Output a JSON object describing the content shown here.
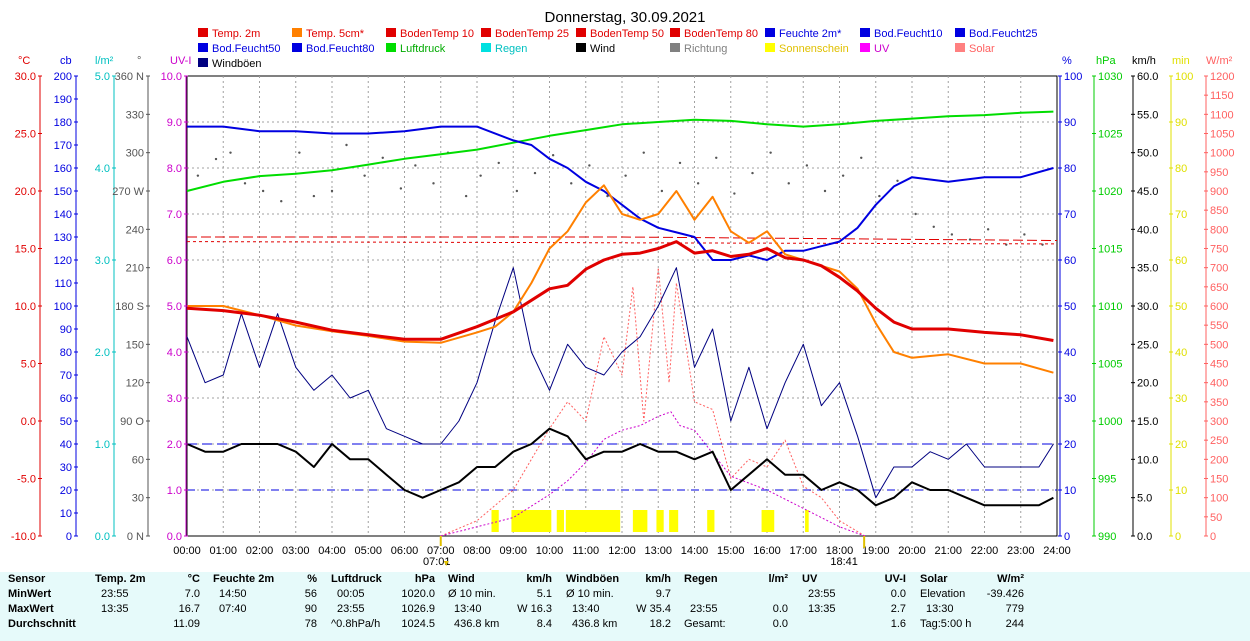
{
  "chart_data": {
    "type": "line",
    "title": "Donnerstag, 30.09.2021",
    "x_range": [
      0,
      24
    ],
    "x_ticks": [
      "00:00",
      "01:00",
      "02:00",
      "03:00",
      "04:00",
      "05:00",
      "06:00",
      "07:00",
      "08:00",
      "09:00",
      "10:00",
      "11:00",
      "12:00",
      "13:00",
      "14:00",
      "15:00",
      "16:00",
      "17:00",
      "18:00",
      "19:00",
      "20:00",
      "21:00",
      "22:00",
      "23:00",
      "24:00"
    ],
    "sunrise": "07:01",
    "sunset": "18:41",
    "legend": [
      {
        "label": "Temp. 2m",
        "color": "#e00000"
      },
      {
        "label": "Temp. 5cm*",
        "color": "#ff8000"
      },
      {
        "label": "BodenTemp 10",
        "color": "#e00000"
      },
      {
        "label": "BodenTemp 25",
        "color": "#e00000"
      },
      {
        "label": "BodenTemp 50",
        "color": "#e00000"
      },
      {
        "label": "BodenTemp 80",
        "color": "#e00000"
      },
      {
        "label": "Feuchte 2m*",
        "color": "#0000e0"
      },
      {
        "label": "Bod.Feucht10",
        "color": "#0000e0"
      },
      {
        "label": "Bod.Feucht25",
        "color": "#0000e0"
      },
      {
        "label": "Bod.Feucht50",
        "color": "#0000e0"
      },
      {
        "label": "Bod.Feucht80",
        "color": "#0000e0"
      },
      {
        "label": "Luftdruck",
        "color": "#00dd00"
      },
      {
        "label": "Regen",
        "color": "#00e0e0"
      },
      {
        "label": "Wind",
        "color": "#000000"
      },
      {
        "label": "Richtung",
        "color": "#808080"
      },
      {
        "label": "Sonnenschein",
        "color": "#ffff00"
      },
      {
        "label": "UV",
        "color": "#ff00ff"
      },
      {
        "label": "Solar",
        "color": "#ff8080"
      },
      {
        "label": "Windböen",
        "color": "#000080"
      }
    ],
    "axes": {
      "temp": {
        "unit": "°C",
        "color": "#e00000",
        "labels": [
          "30.0",
          "25.0",
          "20.0",
          "15.0",
          "10.0",
          "5.0",
          "0.0",
          "-5.0",
          "-10.0"
        ]
      },
      "cb": {
        "unit": "cb",
        "color": "#0000e0",
        "labels": [
          "200",
          "190",
          "180",
          "170",
          "160",
          "150",
          "140",
          "130",
          "120",
          "110",
          "100",
          "90",
          "80",
          "70",
          "60",
          "50",
          "40",
          "30",
          "20",
          "10",
          "0"
        ]
      },
      "rain": {
        "unit": "l/m²",
        "color": "#00c0c0",
        "labels": [
          "5.0",
          "4.0",
          "3.0",
          "2.0",
          "1.0",
          "0.0"
        ]
      },
      "dir": {
        "unit": "°",
        "color": "#555555",
        "labels": [
          "360 N",
          "330",
          "300",
          "270 W",
          "240",
          "210",
          "180 S",
          "150",
          "120",
          "90 O",
          "60",
          "30",
          "0 N"
        ]
      },
      "uv": {
        "unit": "UV-I",
        "color": "#cc00cc",
        "labels": [
          "10.0",
          "9.0",
          "8.0",
          "7.0",
          "6.0",
          "5.0",
          "4.0",
          "3.0",
          "2.0",
          "1.0",
          "0.0"
        ]
      },
      "hum": {
        "unit": "%",
        "color": "#0000e0",
        "labels": [
          "100",
          "90",
          "80",
          "70",
          "60",
          "50",
          "40",
          "30",
          "20",
          "10",
          "0"
        ]
      },
      "press": {
        "unit": "hPa",
        "color": "#00cc00",
        "labels": [
          "1030",
          "1025",
          "1020",
          "1015",
          "1010",
          "1005",
          "1000",
          "995",
          "990"
        ]
      },
      "wind": {
        "unit": "km/h",
        "color": "#000000",
        "labels": [
          "60.0",
          "55.0",
          "50.0",
          "45.0",
          "40.0",
          "35.0",
          "30.0",
          "25.0",
          "20.0",
          "15.0",
          "10.0",
          "5.0",
          "0.0"
        ]
      },
      "sun": {
        "unit": "min",
        "color": "#e0e000",
        "labels": [
          "100",
          "90",
          "80",
          "70",
          "60",
          "50",
          "40",
          "30",
          "20",
          "10",
          "0"
        ]
      },
      "solar": {
        "unit": "W/m²",
        "color": "#ff6060",
        "labels": [
          "1200",
          "1150",
          "1100",
          "1050",
          "1000",
          "950",
          "900",
          "850",
          "800",
          "750",
          "700",
          "650",
          "600",
          "550",
          "500",
          "450",
          "400",
          "350",
          "300",
          "250",
          "200",
          "150",
          "100",
          "50",
          "0"
        ]
      }
    },
    "series": [
      {
        "name": "Temp. 2m",
        "axis": "temp",
        "x": [
          0,
          1,
          2,
          3,
          4,
          5,
          6,
          7,
          8,
          9,
          10,
          10.5,
          11,
          11.5,
          12,
          12.5,
          13,
          13.5,
          14,
          14.5,
          15,
          15.5,
          16,
          16.5,
          17,
          17.5,
          18,
          18.5,
          19,
          19.5,
          20,
          21,
          22,
          23,
          23.9
        ],
        "y": [
          9.8,
          9.6,
          9.2,
          8.6,
          7.9,
          7.5,
          7.1,
          7.1,
          8.2,
          9.5,
          11.5,
          11.8,
          13.2,
          14.0,
          14.5,
          14.6,
          15.0,
          15.6,
          14.6,
          14.8,
          14.3,
          14.5,
          15.0,
          14.2,
          14.0,
          13.5,
          12.5,
          11.3,
          9.8,
          8.6,
          8.0,
          8.0,
          7.7,
          7.5,
          7.0
        ]
      },
      {
        "name": "Temp. 5cm*",
        "axis": "temp",
        "x": [
          0,
          1,
          2,
          3,
          4,
          5,
          6,
          7,
          8,
          8.5,
          9,
          9.5,
          10,
          10.5,
          11,
          11.5,
          12,
          12.5,
          13,
          13.5,
          14,
          14.5,
          15,
          15.5,
          16,
          16.5,
          17,
          17.5,
          18,
          18.5,
          19,
          19.5,
          20,
          21,
          22,
          23,
          23.9
        ],
        "y": [
          10.0,
          10.0,
          9.2,
          8.3,
          7.8,
          7.4,
          6.9,
          6.8,
          7.7,
          8.2,
          9.5,
          12.0,
          15.0,
          16.5,
          19.0,
          20.5,
          18.0,
          17.5,
          18.0,
          20.0,
          17.5,
          19.5,
          16.5,
          15.5,
          16.5,
          14.5,
          14.0,
          13.5,
          13.0,
          11.5,
          8.5,
          6.0,
          5.5,
          5.8,
          5.0,
          5.0,
          4.2
        ]
      },
      {
        "name": "BodenTemp",
        "axis": "temp",
        "x": [
          0,
          12,
          24
        ],
        "y": [
          16.0,
          16.0,
          15.7
        ],
        "dashed": true
      },
      {
        "name": "BodenTemp b",
        "axis": "temp",
        "x": [
          0,
          12,
          24
        ],
        "y": [
          15.6,
          15.5,
          15.4
        ],
        "dashed": true
      },
      {
        "name": "Feuchte 2m*",
        "axis": "hum",
        "x": [
          0,
          1,
          2,
          3,
          4,
          5,
          6,
          7,
          8,
          9,
          9.5,
          10,
          10.5,
          11,
          11.5,
          12,
          12.5,
          13,
          13.5,
          14,
          14.5,
          15,
          15.5,
          16,
          16.5,
          17,
          17.5,
          18,
          18.5,
          19,
          19.5,
          20,
          21,
          22,
          23,
          23.9
        ],
        "y": [
          89,
          89,
          88,
          88,
          87.5,
          87.5,
          88,
          89,
          89,
          86,
          85,
          82,
          80,
          77,
          75,
          72,
          69,
          67,
          66,
          65,
          60,
          60,
          61,
          60,
          62,
          62,
          63,
          64,
          67,
          72,
          76,
          78,
          77,
          78,
          78,
          80
        ]
      },
      {
        "name": "Bod.Feucht",
        "axis": "hum",
        "x": [
          0,
          24
        ],
        "y": [
          20,
          20
        ],
        "dashed": true
      },
      {
        "name": "Bod.Feucht b",
        "axis": "hum",
        "x": [
          0,
          24
        ],
        "y": [
          10,
          10
        ],
        "dashed": true
      },
      {
        "name": "Luftdruck",
        "axis": "press",
        "x": [
          0,
          1,
          2,
          3,
          4,
          5,
          6,
          7,
          8,
          9,
          10,
          11,
          12,
          13,
          14,
          15,
          16,
          17,
          18,
          19,
          20,
          21,
          22,
          23,
          23.9
        ],
        "y": [
          1020.0,
          1020.8,
          1021.3,
          1021.5,
          1021.8,
          1022.3,
          1022.8,
          1023.2,
          1023.6,
          1024.2,
          1024.8,
          1025.3,
          1025.8,
          1026.0,
          1026.2,
          1026.1,
          1025.8,
          1025.6,
          1025.8,
          1026.1,
          1026.3,
          1026.5,
          1026.6,
          1026.8,
          1026.9
        ]
      },
      {
        "name": "Wind",
        "axis": "wind",
        "x": [
          0,
          0.5,
          1,
          1.5,
          2,
          2.5,
          3,
          3.5,
          4,
          4.5,
          5,
          5.5,
          6,
          6.5,
          7,
          7.5,
          8,
          8.5,
          9,
          9.5,
          10,
          10.5,
          11,
          11.5,
          12,
          12.5,
          13,
          13.5,
          14,
          14.5,
          15,
          15.5,
          16,
          16.5,
          17,
          17.5,
          18,
          18.5,
          19,
          19.5,
          20,
          20.5,
          21,
          21.5,
          22,
          22.5,
          23,
          23.5,
          23.9
        ],
        "y": [
          12,
          11,
          11,
          12,
          12,
          12,
          11,
          9,
          12,
          10,
          10,
          8,
          6,
          5,
          6,
          7,
          9,
          9,
          11,
          12,
          14,
          13,
          10,
          11,
          11,
          12,
          11,
          11,
          10,
          11,
          6,
          8,
          10,
          8,
          8,
          6,
          7,
          6,
          4,
          5,
          7,
          6,
          6,
          5,
          4,
          4,
          4,
          4,
          5
        ]
      },
      {
        "name": "Windböen",
        "axis": "wind",
        "x": [
          0,
          0.5,
          1,
          1.5,
          2,
          2.5,
          3,
          3.5,
          4,
          4.5,
          5,
          5.5,
          6,
          6.5,
          7,
          7.5,
          8,
          8.5,
          9,
          9.5,
          10,
          10.5,
          11,
          11.5,
          12,
          12.5,
          13,
          13.5,
          14,
          14.5,
          15,
          15.5,
          16,
          16.5,
          17,
          17.5,
          18,
          18.5,
          19,
          19.5,
          20,
          20.5,
          21,
          21.5,
          22,
          22.5,
          23,
          23.5,
          23.9
        ],
        "y": [
          26,
          20,
          21,
          29,
          22,
          29,
          22,
          19,
          21,
          18,
          19,
          14,
          13,
          12,
          12,
          15,
          20,
          28,
          35,
          24,
          19,
          25,
          22,
          21,
          24,
          26,
          30,
          35,
          22,
          27,
          15,
          22,
          14,
          20,
          25,
          17,
          20,
          13,
          5,
          9,
          9,
          11,
          10,
          12,
          9,
          9,
          9,
          9,
          12
        ]
      },
      {
        "name": "UV",
        "axis": "uv",
        "x": [
          7,
          8,
          9,
          10,
          10.5,
          11,
          11.5,
          12,
          12.5,
          13,
          13.35,
          13.6,
          14,
          14.5,
          15,
          16,
          17,
          17.5,
          18,
          18.7
        ],
        "y": [
          0,
          0.2,
          0.4,
          0.9,
          1.2,
          1.6,
          2.1,
          2.3,
          2.4,
          2.6,
          2.7,
          2.4,
          2.3,
          1.8,
          1.3,
          1.0,
          0.6,
          0.4,
          0.2,
          0
        ]
      },
      {
        "name": "Solar",
        "axis": "solar",
        "x": [
          7,
          8,
          9,
          9.5,
          10,
          10.5,
          11,
          11.5,
          12,
          12.3,
          12.6,
          13,
          13.3,
          13.5,
          14,
          14.5,
          15,
          15.5,
          16,
          16.5,
          17,
          17.5,
          18,
          18.7
        ],
        "y": [
          0,
          40,
          120,
          200,
          280,
          350,
          300,
          520,
          420,
          650,
          300,
          700,
          400,
          660,
          350,
          330,
          150,
          200,
          180,
          250,
          130,
          100,
          40,
          0
        ]
      }
    ],
    "richtung_points": [
      [
        0.3,
        282
      ],
      [
        0.8,
        295
      ],
      [
        1.2,
        300
      ],
      [
        1.6,
        276
      ],
      [
        2.1,
        270
      ],
      [
        2.6,
        262
      ],
      [
        3.1,
        300
      ],
      [
        3.5,
        266
      ],
      [
        4.0,
        270
      ],
      [
        4.4,
        306
      ],
      [
        4.9,
        282
      ],
      [
        5.4,
        296
      ],
      [
        5.9,
        272
      ],
      [
        6.3,
        290
      ],
      [
        6.8,
        276
      ],
      [
        7.2,
        300
      ],
      [
        7.7,
        266
      ],
      [
        8.1,
        282
      ],
      [
        8.6,
        292
      ],
      [
        9.1,
        270
      ],
      [
        9.6,
        284
      ],
      [
        10.1,
        298
      ],
      [
        10.6,
        276
      ],
      [
        11.1,
        290
      ],
      [
        11.6,
        266
      ],
      [
        12.1,
        282
      ],
      [
        12.6,
        300
      ],
      [
        13.1,
        270
      ],
      [
        13.6,
        292
      ],
      [
        14.1,
        276
      ],
      [
        14.6,
        296
      ],
      [
        15.1,
        268
      ],
      [
        15.6,
        284
      ],
      [
        16.1,
        300
      ],
      [
        16.6,
        276
      ],
      [
        17.1,
        290
      ],
      [
        17.6,
        270
      ],
      [
        18.1,
        282
      ],
      [
        18.6,
        296
      ],
      [
        19.1,
        266
      ],
      [
        19.6,
        278
      ],
      [
        20.1,
        252
      ],
      [
        20.6,
        242
      ],
      [
        21.1,
        236
      ],
      [
        21.6,
        232
      ],
      [
        22.1,
        240
      ],
      [
        22.6,
        228
      ],
      [
        23.1,
        236
      ],
      [
        23.6,
        228
      ]
    ],
    "sonnenschein_blocks": [
      [
        8.4,
        8.6
      ],
      [
        8.95,
        10.05
      ],
      [
        10.2,
        10.4
      ],
      [
        10.45,
        11.95
      ],
      [
        12.3,
        12.7
      ],
      [
        12.95,
        13.15
      ],
      [
        13.3,
        13.55
      ],
      [
        14.35,
        14.55
      ],
      [
        15.85,
        16.2
      ],
      [
        17.05,
        17.15
      ]
    ]
  },
  "stats": {
    "sensor": {
      "header": "Sensor",
      "min": "MinWert",
      "max": "MaxWert",
      "avg": "Durchschnitt"
    },
    "temp": {
      "label": "Temp. 2m",
      "unit": "°C",
      "min_time": "23:55",
      "min_value": "7.0",
      "max_time": "13:35",
      "max_value": "16.7",
      "avg_value": "11.09"
    },
    "hum": {
      "label": "Feuchte 2m",
      "unit": "%",
      "min_time": "14:50",
      "min_value": "56",
      "max_time": "07:40",
      "max_value": "90",
      "avg_value": "78"
    },
    "press": {
      "label": "Luftdruck",
      "unit": "hPa",
      "min_time": "00:05",
      "min_value": "1020.0",
      "max_time": "23:55",
      "max_value": "1026.9",
      "avg_label": "^0.8hPa/h",
      "avg_value": "1024.5"
    },
    "wind": {
      "label": "Wind",
      "unit": "km/h",
      "min_label": "Ø 10 min.",
      "min_value": "5.1",
      "max_time": "13:40",
      "max_label": "W 16.3",
      "avg_label": "436.8 km",
      "avg_value": "8.4"
    },
    "gust": {
      "label": "Windböen",
      "unit": "km/h",
      "min_label": "Ø 10 min.",
      "min_value": "9.7",
      "max_time": "13:40",
      "max_label": "W 35.4",
      "avg_label": "436.8 km",
      "avg_value": "18.2"
    },
    "rain": {
      "label": "Regen",
      "unit": "l/m²",
      "max_time": "23:55",
      "max_value": "0.0",
      "avg_label": "Gesamt:",
      "avg_value": "0.0"
    },
    "uv": {
      "label": "UV",
      "unit": "UV-I",
      "min_time": "23:55",
      "min_value": "0.0",
      "max_time": "13:35",
      "max_value": "2.7",
      "avg_value": "1.6"
    },
    "solar": {
      "label": "Solar",
      "unit": "W/m²",
      "min_label": "Elevation",
      "min_value": "-39.426",
      "max_time": "13:30",
      "max_value": "779",
      "avg_label": "Tag:5:00 h",
      "avg_value": "244"
    }
  }
}
